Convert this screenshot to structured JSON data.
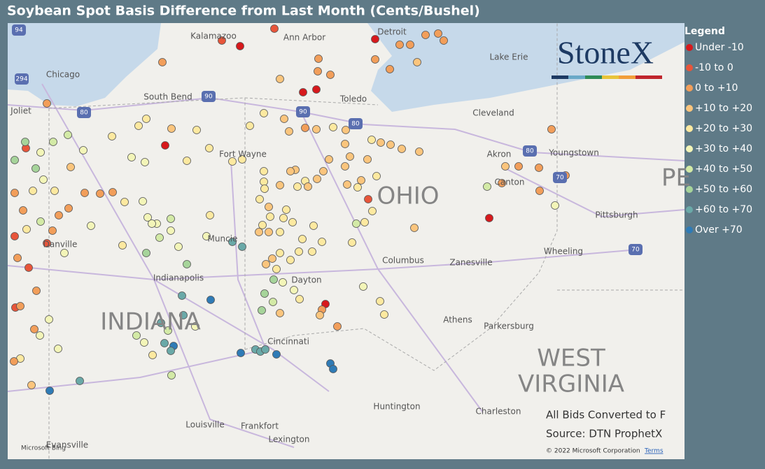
{
  "header": {
    "title": "Soybean Spot Basis Difference from Last Month (Cents/Bushel)"
  },
  "legend": {
    "title": "Legend",
    "items": [
      {
        "label": "Under -10",
        "color": "#d7191c"
      },
      {
        "label": "-10 to 0",
        "color": "#e8553a"
      },
      {
        "label": "0 to +10",
        "color": "#f29e5a"
      },
      {
        "label": "+10 to +20",
        "color": "#fbc57d"
      },
      {
        "label": "+20 to +30",
        "color": "#fde9a0"
      },
      {
        "label": "+30 to +40",
        "color": "#f3f5b8"
      },
      {
        "label": "+40 to +50",
        "color": "#d3eaa6"
      },
      {
        "label": "+50 to +60",
        "color": "#a6d49a"
      },
      {
        "label": "+60 to +70",
        "color": "#6aa9a8"
      },
      {
        "label": "Over +70",
        "color": "#2f7bb6"
      }
    ]
  },
  "map": {
    "cities": [
      "Kalamazoo",
      "Ann Arbor",
      "Detroit",
      "Chicago",
      "South Bend",
      "Toledo",
      "Cleveland",
      "Joliet",
      "Fort Wayne",
      "Akron",
      "Youngstown",
      "Canton",
      "Pittsburgh",
      "Muncie",
      "Danville",
      "Columbus",
      "Zanesville",
      "Wheeling",
      "Indianapolis",
      "Dayton",
      "Athens",
      "Parkersburg",
      "Cincinnati",
      "Huntington",
      "Charleston",
      "Louisville",
      "Frankfort",
      "Lexington",
      "Evansville",
      "Lake Erie"
    ],
    "states": [
      "INDIANA",
      "OHIO",
      "WEST",
      "VIRGINIA",
      "PE"
    ],
    "shields": [
      "94",
      "294",
      "90",
      "90",
      "80",
      "80",
      "80",
      "70",
      "70"
    ]
  },
  "logo": "StoneX",
  "notes": [
    "All Bids Converted to F",
    "Source: DTN ProphetX"
  ],
  "footer": {
    "copyright": "© 2022 Microsoft Corporation",
    "terms": "Terms",
    "provider": "Microsoft Bing"
  }
}
